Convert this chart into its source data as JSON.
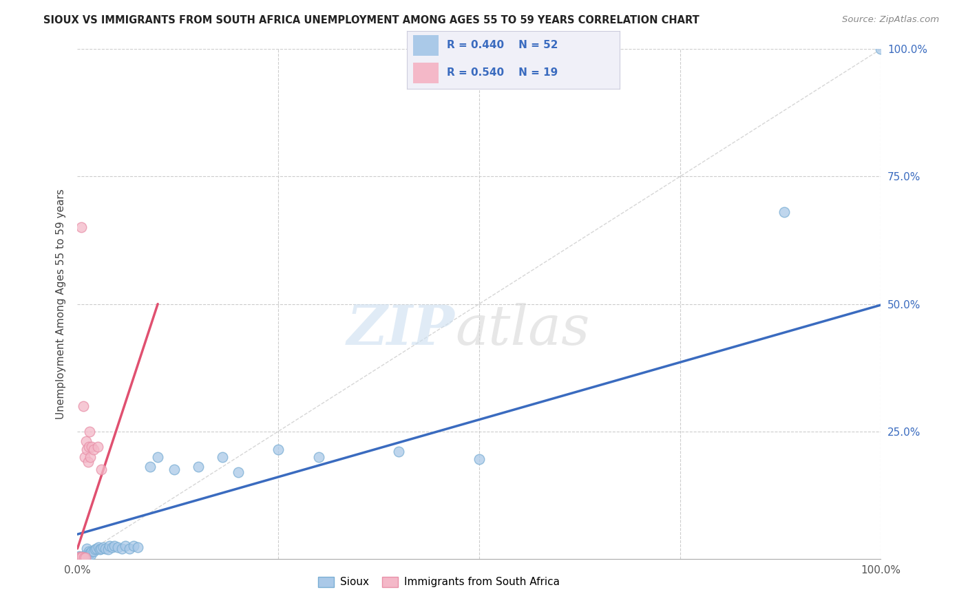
{
  "title": "SIOUX VS IMMIGRANTS FROM SOUTH AFRICA UNEMPLOYMENT AMONG AGES 55 TO 59 YEARS CORRELATION CHART",
  "source": "Source: ZipAtlas.com",
  "ylabel": "Unemployment Among Ages 55 to 59 years",
  "xlim": [
    0,
    1.0
  ],
  "ylim": [
    0,
    1.0
  ],
  "watermark_zip": "ZIP",
  "watermark_atlas": "atlas",
  "legend_r_sioux": "R = 0.440",
  "legend_n_sioux": "N = 52",
  "legend_r_immigrants": "R = 0.540",
  "legend_n_immigrants": "N = 19",
  "sioux_color": "#aac9e8",
  "sioux_edge": "#7aaed4",
  "immigrants_color": "#f4b8c8",
  "immigrants_edge": "#e890a8",
  "trend_sioux_color": "#3a6bbf",
  "trend_immigrants_color": "#e05070",
  "diag_color": "#cccccc",
  "background_color": "#ffffff",
  "grid_color": "#cccccc",
  "legend_box_color": "#e8e8f0",
  "sioux_legend_color": "#aac9e8",
  "immigrants_legend_color": "#f4b8c8",
  "legend_text_color": "#3a6bbf",
  "ytick_color": "#3a6bbf",
  "sioux_x": [
    0.002,
    0.003,
    0.004,
    0.005,
    0.006,
    0.006,
    0.007,
    0.007,
    0.008,
    0.008,
    0.009,
    0.009,
    0.01,
    0.01,
    0.011,
    0.012,
    0.013,
    0.014,
    0.015,
    0.016,
    0.017,
    0.018,
    0.02,
    0.022,
    0.024,
    0.026,
    0.028,
    0.03,
    0.032,
    0.035,
    0.038,
    0.04,
    0.043,
    0.046,
    0.05,
    0.055,
    0.06,
    0.065,
    0.07,
    0.075,
    0.09,
    0.1,
    0.12,
    0.15,
    0.18,
    0.2,
    0.25,
    0.3,
    0.4,
    0.5,
    0.88,
    1.0
  ],
  "sioux_y": [
    0.005,
    0.003,
    0.002,
    0.004,
    0.002,
    0.003,
    0.002,
    0.005,
    0.003,
    0.004,
    0.002,
    0.003,
    0.002,
    0.008,
    0.003,
    0.02,
    0.005,
    0.015,
    0.01,
    0.012,
    0.008,
    0.015,
    0.015,
    0.018,
    0.02,
    0.022,
    0.018,
    0.02,
    0.022,
    0.02,
    0.018,
    0.025,
    0.022,
    0.025,
    0.022,
    0.02,
    0.025,
    0.02,
    0.025,
    0.022,
    0.18,
    0.2,
    0.175,
    0.18,
    0.2,
    0.17,
    0.215,
    0.2,
    0.21,
    0.195,
    0.68,
    1.0
  ],
  "immigrants_x": [
    0.002,
    0.003,
    0.004,
    0.005,
    0.006,
    0.007,
    0.008,
    0.009,
    0.01,
    0.011,
    0.012,
    0.013,
    0.014,
    0.015,
    0.016,
    0.018,
    0.02,
    0.025,
    0.03
  ],
  "immigrants_y": [
    0.002,
    0.003,
    0.002,
    0.65,
    0.003,
    0.3,
    0.002,
    0.2,
    0.002,
    0.23,
    0.215,
    0.19,
    0.22,
    0.25,
    0.2,
    0.22,
    0.215,
    0.22,
    0.175
  ],
  "sioux_trend": [
    0.0,
    1.0,
    0.048,
    0.498
  ],
  "immigrants_trend": [
    0.0,
    0.1,
    0.02,
    0.5
  ]
}
